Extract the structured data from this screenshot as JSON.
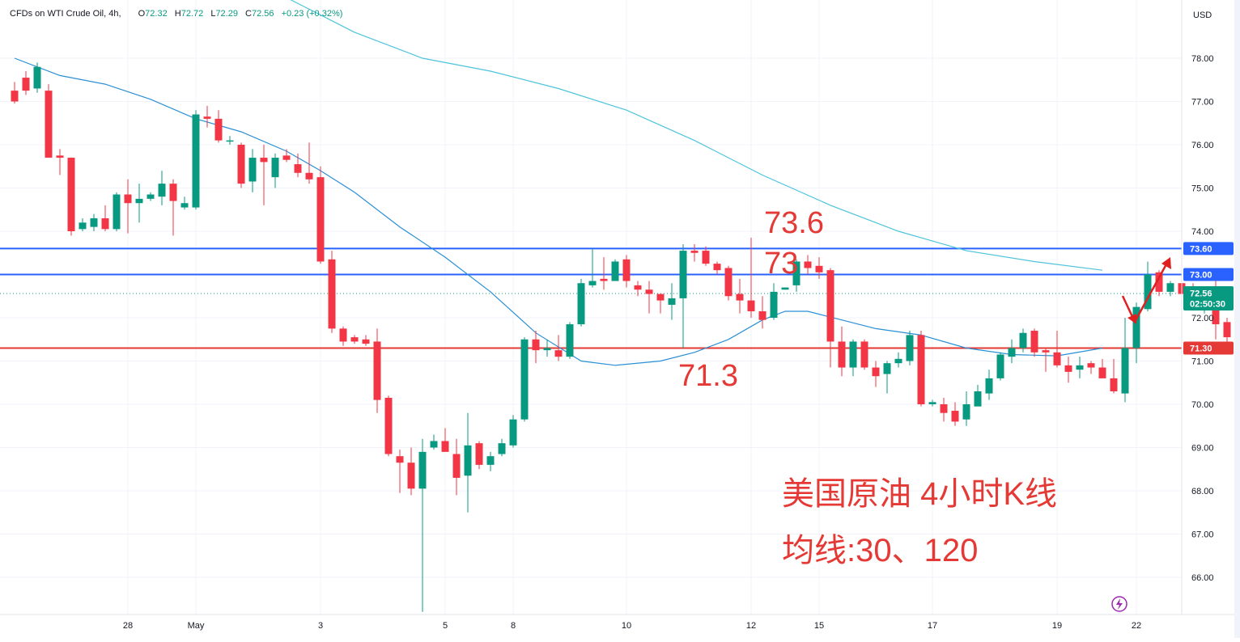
{
  "header": {
    "symbol": "CFDs on WTI Crude Oil, 4h,",
    "open_label": "O",
    "open": "72.32",
    "high_label": "H",
    "high": "72.72",
    "low_label": "L",
    "low": "72.29",
    "close_label": "C",
    "close": "72.56",
    "change": "+0.23 (+0.32%)"
  },
  "currency": "USD",
  "last_price": "72.56",
  "countdown": "02:50:30",
  "annotations": {
    "level_top": "73.6",
    "level_mid": "73",
    "level_low": "71.3",
    "caption_line1": "美国原油 4小时K线",
    "caption_line2": "均线:30、120"
  },
  "colors": {
    "up": "#089981",
    "down": "#f23645",
    "blue_line": "#2962ff",
    "red_line": "#e53935",
    "ma_fast": "#2a8fd6",
    "ma_slow": "#4dc4dc",
    "annotation": "#e53935",
    "arrow": "#e02020"
  },
  "chart_data": {
    "type": "candlestick",
    "timeframe": "4h",
    "y_axis": {
      "ticks": [
        "66.00",
        "67.00",
        "68.00",
        "69.00",
        "70.00",
        "71.00",
        "72.00",
        "73.00",
        "74.00",
        "75.00",
        "76.00",
        "77.00",
        "78.00"
      ],
      "range": [
        65.2,
        78.9
      ]
    },
    "x_axis": {
      "ticks": [
        {
          "label": "28",
          "index": 10
        },
        {
          "label": "May",
          "index": 16
        },
        {
          "label": "3",
          "index": 27
        },
        {
          "label": "5",
          "index": 38
        },
        {
          "label": "8",
          "index": 44
        },
        {
          "label": "10",
          "index": 54
        },
        {
          "label": "12",
          "index": 65
        },
        {
          "label": "15",
          "index": 71
        },
        {
          "label": "17",
          "index": 81
        },
        {
          "label": "19",
          "index": 92
        },
        {
          "label": "22",
          "index": 99
        }
      ]
    },
    "horizontal_lines": [
      {
        "value": 73.6,
        "label": "73.60",
        "color": "#2962ff"
      },
      {
        "value": 73.0,
        "label": "73.00",
        "color": "#2962ff"
      },
      {
        "value": 71.3,
        "label": "71.30",
        "color": "#e53935"
      }
    ],
    "candles": [
      [
        77.25,
        77.0,
        77.45,
        76.95
      ],
      [
        77.55,
        77.25,
        77.7,
        77.15
      ],
      [
        77.3,
        77.8,
        77.9,
        77.2
      ],
      [
        77.25,
        75.7,
        77.4,
        75.7
      ],
      [
        75.75,
        75.7,
        75.9,
        75.3
      ],
      [
        75.7,
        74.0,
        75.7,
        73.9
      ],
      [
        74.05,
        74.2,
        74.3,
        74.0
      ],
      [
        74.1,
        74.3,
        74.4,
        74.0
      ],
      [
        74.3,
        74.05,
        74.6,
        74.0
      ],
      [
        74.05,
        74.85,
        74.9,
        74.0
      ],
      [
        74.85,
        74.65,
        75.2,
        73.95
      ],
      [
        74.65,
        74.75,
        75.1,
        74.2
      ],
      [
        74.75,
        74.85,
        74.9,
        74.7
      ],
      [
        74.8,
        75.1,
        75.4,
        74.6
      ],
      [
        75.1,
        74.7,
        75.2,
        73.9
      ],
      [
        74.55,
        74.65,
        74.8,
        74.5
      ],
      [
        74.55,
        76.7,
        76.8,
        74.5
      ],
      [
        76.65,
        76.6,
        76.9,
        76.4
      ],
      [
        76.6,
        76.1,
        76.8,
        76.05
      ],
      [
        76.1,
        76.1,
        76.2,
        76.0
      ],
      [
        76.0,
        75.1,
        76.05,
        75.0
      ],
      [
        75.15,
        75.7,
        75.9,
        74.9
      ],
      [
        75.7,
        75.6,
        76.0,
        74.6
      ],
      [
        75.25,
        75.7,
        75.8,
        75.0
      ],
      [
        75.75,
        75.65,
        75.9,
        75.6
      ],
      [
        75.55,
        75.35,
        75.8,
        75.25
      ],
      [
        75.35,
        75.2,
        76.05,
        75.1
      ],
      [
        75.25,
        73.3,
        75.5,
        73.25
      ],
      [
        73.35,
        71.75,
        73.55,
        71.65
      ],
      [
        71.75,
        71.45,
        71.8,
        71.35
      ],
      [
        71.55,
        71.45,
        71.6,
        71.4
      ],
      [
        71.5,
        71.4,
        71.6,
        71.35
      ],
      [
        71.45,
        70.1,
        71.75,
        69.8
      ],
      [
        70.15,
        68.85,
        70.2,
        68.8
      ],
      [
        68.8,
        68.65,
        68.95,
        67.95
      ],
      [
        68.65,
        68.05,
        69.0,
        67.9
      ],
      [
        68.05,
        68.9,
        69.2,
        65.2
      ],
      [
        69.0,
        69.15,
        69.3,
        68.95
      ],
      [
        69.15,
        68.9,
        69.45,
        68.9
      ],
      [
        68.85,
        68.3,
        69.2,
        67.9
      ],
      [
        68.35,
        69.05,
        69.8,
        67.5
      ],
      [
        69.1,
        68.6,
        69.15,
        68.5
      ],
      [
        68.6,
        68.8,
        68.9,
        68.45
      ],
      [
        68.85,
        69.1,
        69.2,
        68.8
      ],
      [
        69.05,
        69.65,
        69.75,
        69.0
      ],
      [
        69.65,
        71.5,
        71.55,
        69.6
      ],
      [
        71.5,
        71.25,
        71.7,
        70.95
      ],
      [
        71.25,
        71.3,
        71.5,
        71.1
      ],
      [
        71.25,
        71.1,
        71.6,
        71.0
      ],
      [
        71.1,
        71.85,
        71.9,
        71.05
      ],
      [
        71.85,
        72.8,
        72.9,
        71.8
      ],
      [
        72.75,
        72.85,
        73.6,
        72.7
      ],
      [
        72.9,
        72.85,
        73.4,
        72.65
      ],
      [
        72.85,
        73.3,
        73.35,
        72.85
      ],
      [
        73.35,
        72.85,
        73.45,
        72.7
      ],
      [
        72.75,
        72.65,
        72.85,
        72.5
      ],
      [
        72.65,
        72.55,
        72.85,
        72.1
      ],
      [
        72.55,
        72.4,
        72.55,
        72.1
      ],
      [
        72.3,
        72.45,
        72.8,
        71.95
      ],
      [
        72.45,
        73.55,
        73.7,
        71.3
      ],
      [
        73.55,
        73.5,
        73.7,
        73.3
      ],
      [
        73.55,
        73.25,
        73.65,
        73.2
      ],
      [
        73.25,
        73.1,
        73.3,
        73.0
      ],
      [
        73.15,
        72.5,
        73.2,
        72.4
      ],
      [
        72.55,
        72.4,
        72.9,
        72.1
      ],
      [
        72.4,
        72.15,
        73.85,
        72.0
      ],
      [
        72.15,
        71.95,
        72.5,
        71.75
      ],
      [
        72.0,
        72.6,
        72.8,
        71.95
      ],
      [
        72.65,
        72.7,
        72.7,
        72.65
      ],
      [
        72.75,
        73.3,
        73.35,
        72.6
      ],
      [
        73.3,
        73.15,
        73.45,
        73.0
      ],
      [
        73.2,
        73.05,
        73.4,
        72.9
      ],
      [
        73.1,
        71.45,
        73.15,
        70.85
      ],
      [
        71.45,
        70.85,
        71.8,
        70.65
      ],
      [
        70.85,
        71.45,
        71.5,
        70.65
      ],
      [
        71.45,
        70.85,
        71.5,
        70.8
      ],
      [
        70.85,
        70.65,
        71.0,
        70.4
      ],
      [
        70.7,
        70.95,
        71.0,
        70.25
      ],
      [
        70.95,
        71.05,
        71.2,
        70.85
      ],
      [
        71.0,
        71.6,
        71.7,
        70.9
      ],
      [
        71.6,
        70.0,
        71.7,
        69.95
      ],
      [
        70.0,
        70.05,
        70.1,
        69.95
      ],
      [
        70.0,
        69.8,
        70.15,
        69.6
      ],
      [
        69.85,
        69.6,
        70.05,
        69.5
      ],
      [
        69.65,
        70.0,
        70.3,
        69.5
      ],
      [
        69.95,
        70.3,
        70.45,
        69.95
      ],
      [
        70.25,
        70.6,
        70.8,
        70.1
      ],
      [
        70.6,
        71.15,
        71.2,
        70.55
      ],
      [
        71.1,
        71.3,
        71.5,
        70.95
      ],
      [
        71.3,
        71.65,
        71.75,
        71.2
      ],
      [
        71.7,
        71.2,
        71.75,
        71.1
      ],
      [
        71.25,
        71.2,
        71.3,
        70.75
      ],
      [
        71.2,
        70.9,
        71.7,
        70.85
      ],
      [
        70.9,
        70.75,
        71.1,
        70.5
      ],
      [
        70.8,
        70.9,
        71.1,
        70.6
      ],
      [
        70.95,
        70.85,
        71.0,
        70.7
      ],
      [
        70.85,
        70.6,
        71.05,
        70.6
      ],
      [
        70.6,
        70.3,
        71.05,
        70.25
      ],
      [
        70.25,
        71.3,
        72.0,
        70.05
      ],
      [
        71.3,
        72.25,
        72.35,
        70.95
      ],
      [
        72.2,
        73.0,
        73.3,
        72.15
      ],
      [
        73.05,
        72.6,
        73.1,
        72.5
      ],
      [
        72.6,
        72.8,
        72.85,
        72.5
      ],
      [
        72.8,
        72.55,
        72.9,
        72.35
      ],
      [
        72.5,
        72.4,
        72.8,
        72.3
      ],
      [
        72.3,
        72.5,
        72.5,
        72.1
      ],
      [
        72.5,
        71.85,
        72.85,
        71.5
      ],
      [
        71.9,
        71.55,
        72.0,
        71.3
      ],
      [
        71.55,
        71.9,
        72.0,
        71.35
      ],
      [
        71.95,
        71.75,
        72.05,
        71.7
      ],
      [
        71.75,
        72.3,
        72.4,
        71.7
      ],
      [
        72.32,
        72.56,
        72.72,
        72.29
      ]
    ],
    "ma_30": [
      [
        0,
        78.0
      ],
      [
        4,
        77.6
      ],
      [
        8,
        77.4
      ],
      [
        12,
        77.05
      ],
      [
        16,
        76.6
      ],
      [
        20,
        76.3
      ],
      [
        24,
        75.85
      ],
      [
        27,
        75.4
      ],
      [
        30,
        74.9
      ],
      [
        34,
        74.1
      ],
      [
        38,
        73.4
      ],
      [
        42,
        72.6
      ],
      [
        46,
        71.65
      ],
      [
        50,
        71.0
      ],
      [
        53,
        70.9
      ],
      [
        57,
        71.0
      ],
      [
        60,
        71.2
      ],
      [
        63,
        71.5
      ],
      [
        66,
        71.95
      ],
      [
        68,
        72.15
      ],
      [
        70,
        72.15
      ],
      [
        73,
        71.95
      ],
      [
        76,
        71.75
      ],
      [
        80,
        71.6
      ],
      [
        84,
        71.3
      ],
      [
        88,
        71.15
      ],
      [
        92,
        71.12
      ],
      [
        96,
        71.3
      ]
    ],
    "ma_120": [
      [
        24,
        79.4
      ],
      [
        30,
        78.6
      ],
      [
        36,
        78.0
      ],
      [
        42,
        77.7
      ],
      [
        48,
        77.3
      ],
      [
        54,
        76.8
      ],
      [
        60,
        76.1
      ],
      [
        66,
        75.3
      ],
      [
        72,
        74.6
      ],
      [
        78,
        74.0
      ],
      [
        84,
        73.55
      ],
      [
        90,
        73.3
      ],
      [
        96,
        73.1
      ]
    ],
    "last_price_marker": {
      "value": 72.56,
      "label": "72.56",
      "countdown": "02:50:30"
    }
  }
}
